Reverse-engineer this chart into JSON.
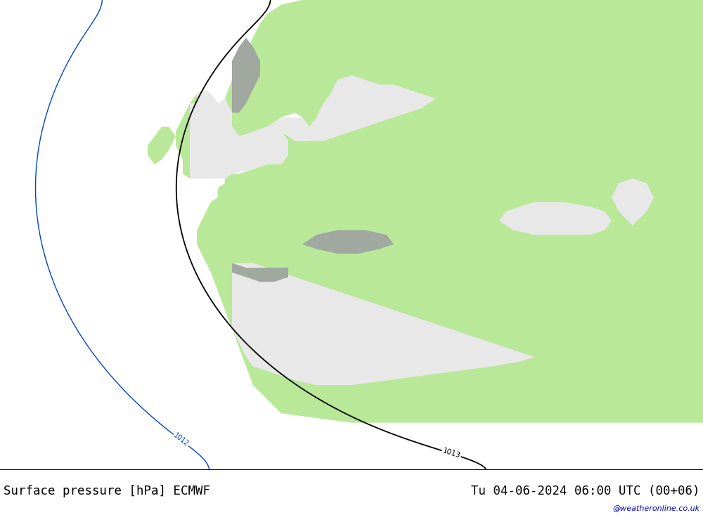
{
  "title_left": "Surface pressure [hPa] ECMWF",
  "title_right": "Tu 04-06-2024 06:00 UTC (00+06)",
  "watermark": "@weatheronline.co.uk",
  "sea_color": "#e8e8e8",
  "land_color": "#b8e898",
  "mountain_color": "#a0a8a0",
  "figsize": [
    10.0,
    7.33
  ],
  "dpi": 100,
  "bottom_bar_color": "#f0f0f0",
  "text_color": "#000000",
  "watermark_color": "#0000bb",
  "levels_blue": [
    980,
    984,
    988,
    992,
    996,
    1000,
    1004,
    1008,
    1012
  ],
  "levels_black": [
    1013
  ],
  "levels_red": [
    1016,
    1020,
    1024,
    1028,
    1032,
    1036,
    1040
  ],
  "color_blue": "#0044cc",
  "color_black": "#000000",
  "color_red": "#cc0000"
}
